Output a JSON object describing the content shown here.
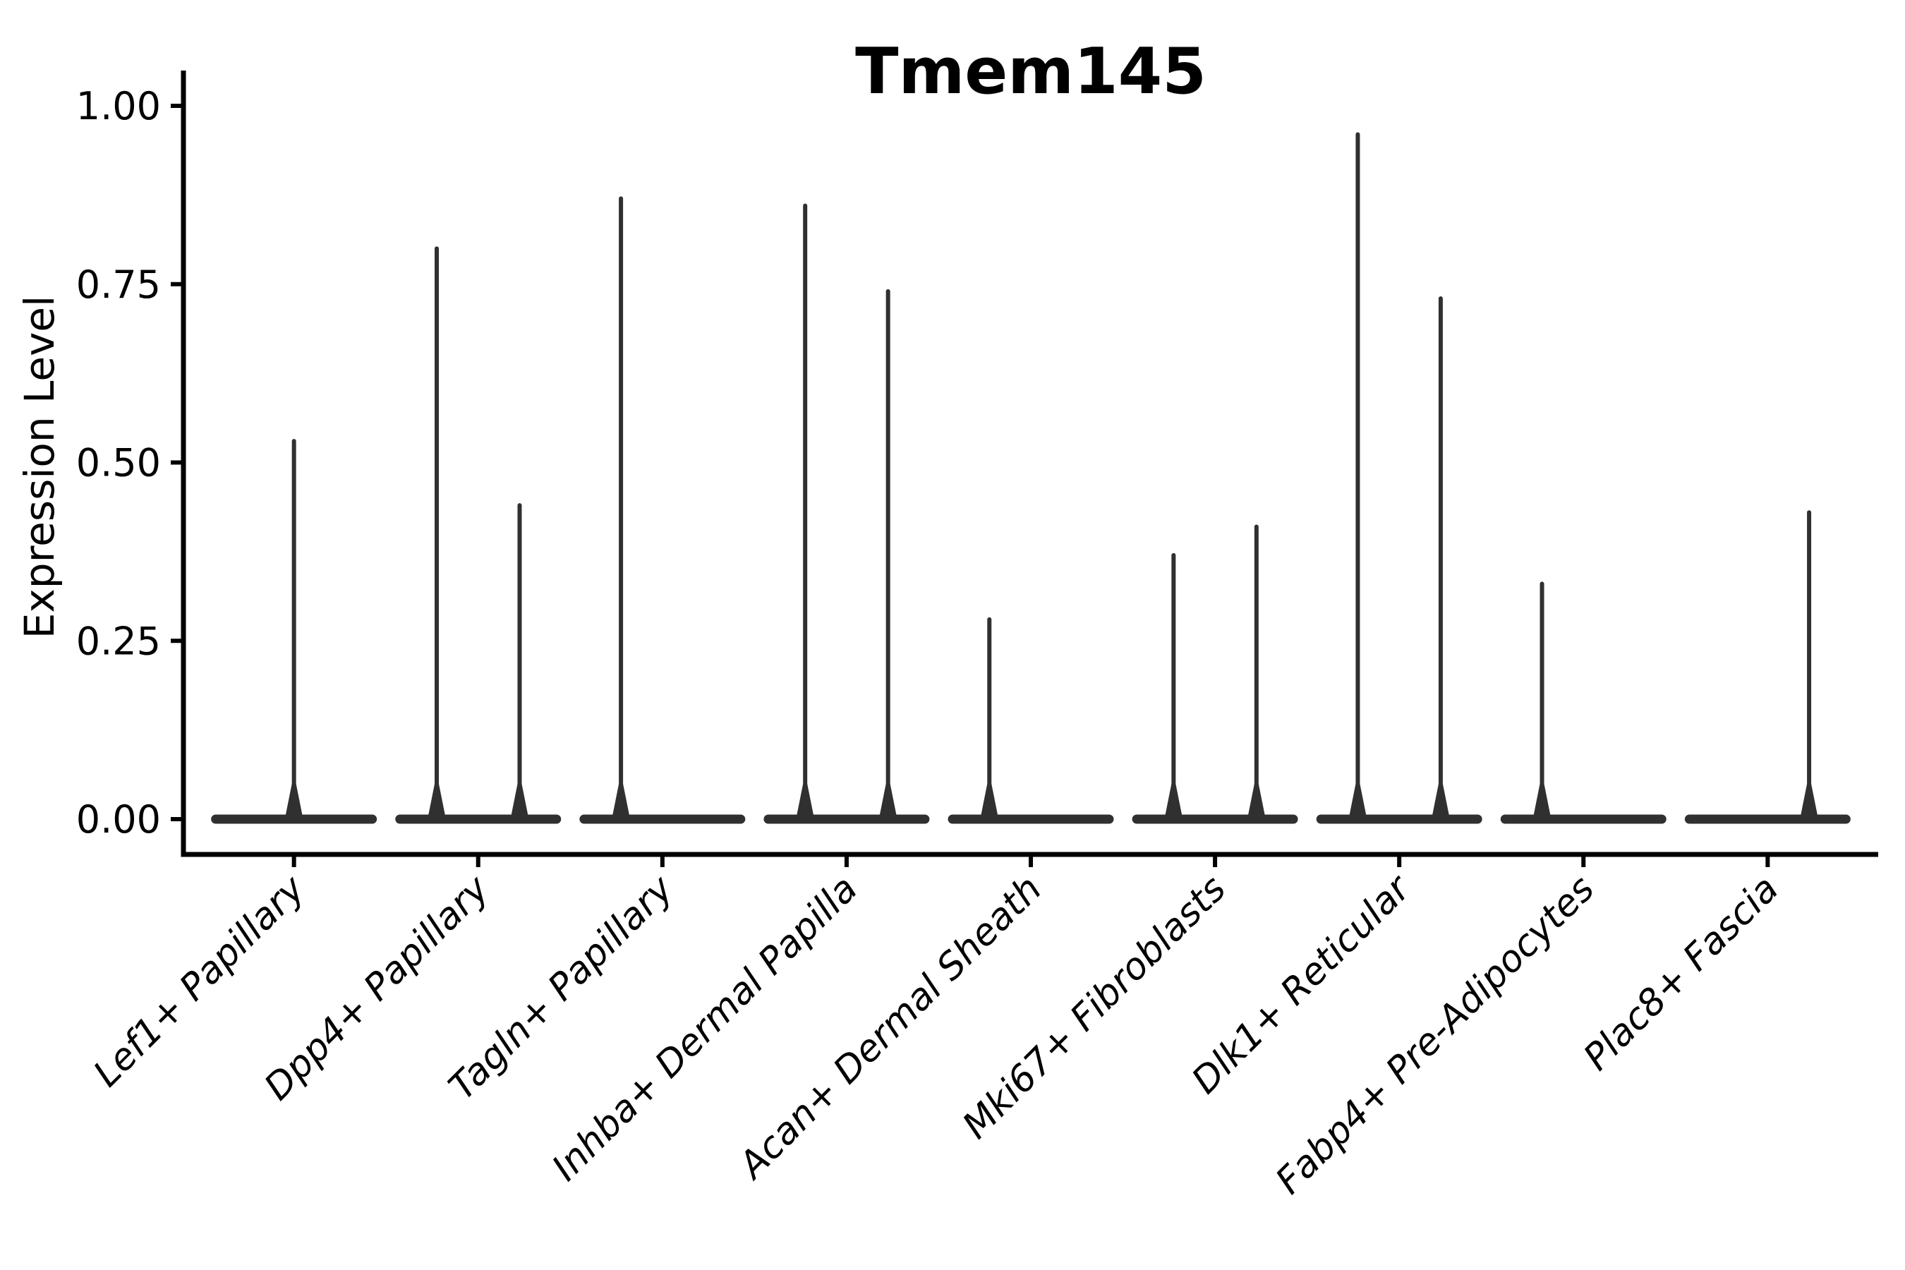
{
  "chart_data": {
    "type": "violin",
    "title": "Tmem145",
    "ylabel": "Expression Level",
    "xlabel": "",
    "ylim": [
      0,
      1
    ],
    "grid": false,
    "legend": "none",
    "background": "#ffffff",
    "axis_color": "#000000",
    "violin_color": "#303030",
    "baseline_value": 0.0,
    "x_tick_rotation_deg": 45,
    "x_tick_style": "italic",
    "yticks": [
      {
        "value": 0.0,
        "label": "0.00"
      },
      {
        "value": 0.25,
        "label": "0.25"
      },
      {
        "value": 0.5,
        "label": "0.50"
      },
      {
        "value": 0.75,
        "label": "0.75"
      },
      {
        "value": 1.0,
        "label": "1.00"
      }
    ],
    "categories": [
      {
        "label": "Lef1+ Papillary",
        "spikes": [
          {
            "pos": "center",
            "max": 0.53
          }
        ]
      },
      {
        "label": "Dpp4+ Papillary",
        "spikes": [
          {
            "pos": "left",
            "max": 0.8
          },
          {
            "pos": "right",
            "max": 0.44
          }
        ]
      },
      {
        "label": "Tagln+ Papillary",
        "spikes": [
          {
            "pos": "left",
            "max": 0.87
          }
        ]
      },
      {
        "label": "Inhba+ Dermal Papilla",
        "spikes": [
          {
            "pos": "left",
            "max": 0.86
          },
          {
            "pos": "right",
            "max": 0.74
          }
        ]
      },
      {
        "label": "Acan+ Dermal Sheath",
        "spikes": [
          {
            "pos": "left",
            "max": 0.28
          }
        ]
      },
      {
        "label": "Mki67+ Fibroblasts",
        "spikes": [
          {
            "pos": "left",
            "max": 0.37
          },
          {
            "pos": "right",
            "max": 0.41
          }
        ]
      },
      {
        "label": "Dlk1+ Reticular",
        "spikes": [
          {
            "pos": "left",
            "max": 0.96
          },
          {
            "pos": "right",
            "max": 0.73
          }
        ]
      },
      {
        "label": "Fabp4+ Pre-Adipocytes",
        "spikes": [
          {
            "pos": "left",
            "max": 0.33
          }
        ]
      },
      {
        "label": "Plac8+ Fascia",
        "spikes": [
          {
            "pos": "right",
            "max": 0.43
          }
        ]
      }
    ],
    "layout_hints": {
      "violin_total_width_units": 0.9,
      "dodge_offset_units": 0.225,
      "discrete_axis_padding_units": 0.6,
      "y_expansion_fraction": 0.05
    }
  }
}
